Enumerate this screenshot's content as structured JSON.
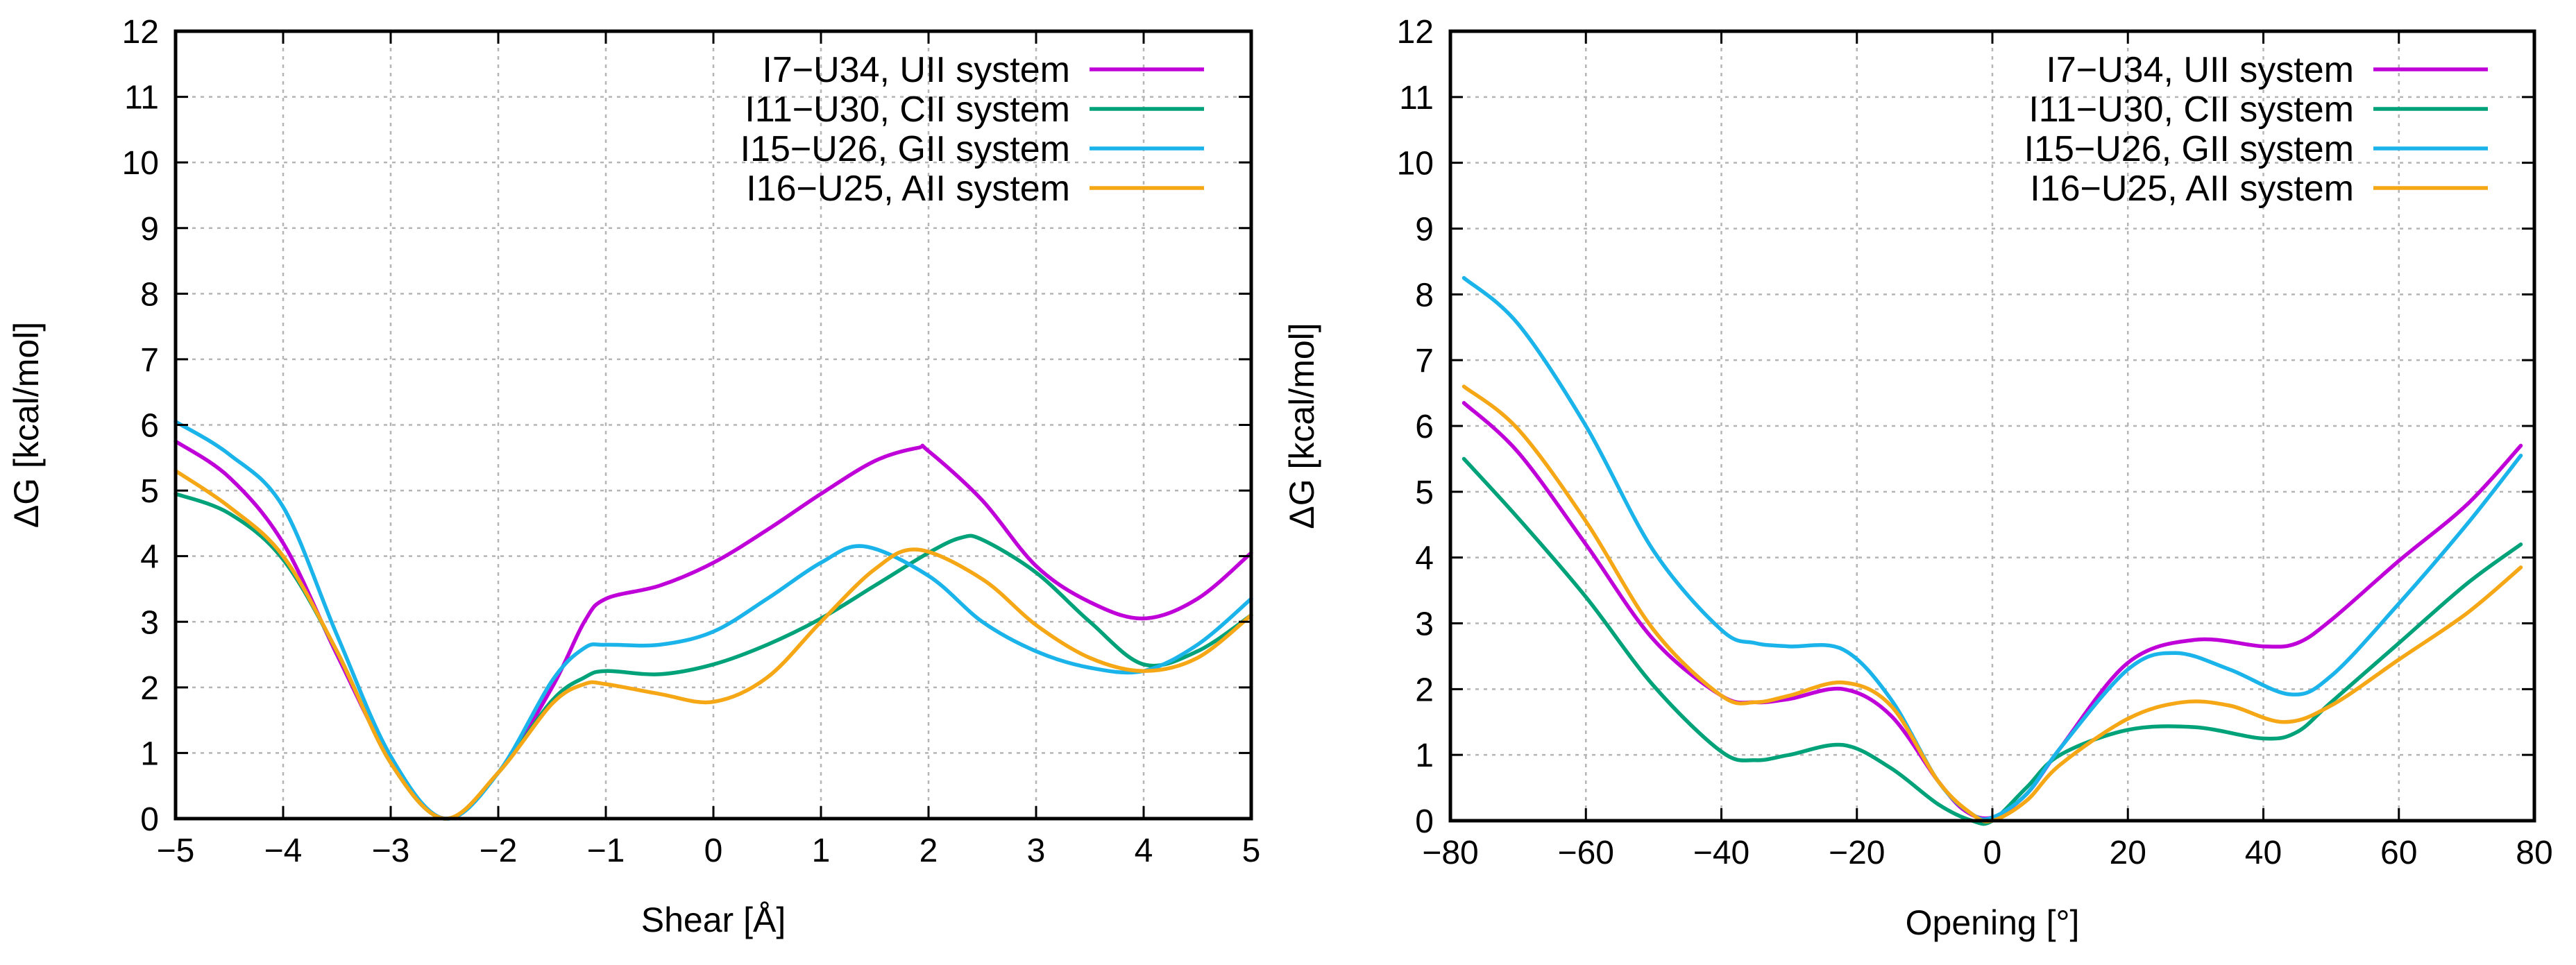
{
  "chart_data": [
    {
      "type": "line",
      "xlabel": "Shear [Å]",
      "ylabel": "ΔG [kcal/mol]",
      "xlim": [
        -5,
        5
      ],
      "ylim": [
        0,
        12
      ],
      "xticks": [
        -5,
        -4,
        -3,
        -2,
        -1,
        0,
        1,
        2,
        3,
        4,
        5
      ],
      "yticks": [
        0,
        1,
        2,
        3,
        4,
        5,
        6,
        7,
        8,
        9,
        10,
        11,
        12
      ],
      "xtick_labels": [
        "−5",
        "−4",
        "−3",
        "−2",
        "−1",
        "0",
        "1",
        "2",
        "3",
        "4",
        "5"
      ],
      "ytick_labels": [
        "0",
        "1",
        "2",
        "3",
        "4",
        "5",
        "6",
        "7",
        "8",
        "9",
        "10",
        "11",
        "12"
      ],
      "grid": true,
      "legend_position": "top-right",
      "series": [
        {
          "name": "I7−U34, UII system",
          "color": "#c000d8",
          "x": [
            -5,
            -4.5,
            -4,
            -3.5,
            -3,
            -2.5,
            -2,
            -1.5,
            -1.2,
            -1,
            -0.5,
            0,
            0.5,
            1,
            1.5,
            1.9,
            2,
            2.5,
            3,
            3.5,
            4,
            4.5,
            5
          ],
          "y": [
            5.75,
            5.2,
            4.2,
            2.5,
            0.9,
            0.0,
            0.7,
            2.0,
            3.0,
            3.35,
            3.55,
            3.9,
            4.4,
            4.95,
            5.45,
            5.65,
            5.6,
            4.85,
            3.85,
            3.3,
            3.05,
            3.35,
            4.05
          ]
        },
        {
          "name": "I11−U30, CII system",
          "color": "#00a27a",
          "x": [
            -5,
            -4.5,
            -4,
            -3.5,
            -3,
            -2.5,
            -2,
            -1.5,
            -1.2,
            -1,
            -0.5,
            0,
            0.5,
            1,
            1.5,
            2,
            2.3,
            2.5,
            3,
            3.5,
            4,
            4.5,
            5
          ],
          "y": [
            4.95,
            4.65,
            3.95,
            2.55,
            0.85,
            0.0,
            0.7,
            1.8,
            2.15,
            2.25,
            2.2,
            2.35,
            2.65,
            3.05,
            3.55,
            4.05,
            4.28,
            4.25,
            3.75,
            3.0,
            2.35,
            2.55,
            3.1
          ]
        },
        {
          "name": "I15−U26, GII system",
          "color": "#1ab4ea",
          "x": [
            -5,
            -4.5,
            -4,
            -3.5,
            -3,
            -2.5,
            -2,
            -1.5,
            -1.2,
            -1,
            -0.5,
            0,
            0.5,
            1,
            1.4,
            2,
            2.5,
            3,
            3.5,
            4,
            4.5,
            5
          ],
          "y": [
            6.05,
            5.55,
            4.75,
            2.8,
            0.95,
            0.0,
            0.7,
            2.1,
            2.6,
            2.65,
            2.65,
            2.85,
            3.35,
            3.9,
            4.15,
            3.7,
            3.0,
            2.55,
            2.3,
            2.25,
            2.65,
            3.35
          ]
        },
        {
          "name": "I16−U25, AII system",
          "color": "#f5a716",
          "x": [
            -5,
            -4.5,
            -4,
            -3.5,
            -3,
            -2.5,
            -2,
            -1.5,
            -1.2,
            -1,
            -0.5,
            0,
            0.5,
            1,
            1.5,
            1.9,
            2.5,
            3,
            3.5,
            4,
            4.5,
            5
          ],
          "y": [
            5.3,
            4.75,
            4.0,
            2.55,
            0.85,
            0.0,
            0.7,
            1.75,
            2.05,
            2.05,
            1.9,
            1.78,
            2.15,
            3.0,
            3.8,
            4.1,
            3.65,
            2.95,
            2.45,
            2.25,
            2.45,
            3.1
          ]
        }
      ]
    },
    {
      "type": "line",
      "xlabel": "Opening [°]",
      "ylabel": "ΔG [kcal/mol]",
      "xlim": [
        -80,
        80
      ],
      "ylim": [
        0,
        12
      ],
      "xticks": [
        -80,
        -60,
        -40,
        -20,
        0,
        20,
        40,
        60,
        80
      ],
      "yticks": [
        0,
        1,
        2,
        3,
        4,
        5,
        6,
        7,
        8,
        9,
        10,
        11,
        12
      ],
      "xtick_labels": [
        "−80",
        "−60",
        "−40",
        "−20",
        "0",
        "20",
        "40",
        "60",
        "80"
      ],
      "ytick_labels": [
        "0",
        "1",
        "2",
        "3",
        "4",
        "5",
        "6",
        "7",
        "8",
        "9",
        "10",
        "11",
        "12"
      ],
      "grid": true,
      "legend_position": "top-right",
      "series": [
        {
          "name": "I7−U34, UII system",
          "color": "#c000d8",
          "x": [
            -78,
            -70,
            -60,
            -50,
            -40,
            -35,
            -30,
            -22,
            -15,
            -8,
            -4,
            0,
            5,
            10,
            20,
            30,
            40,
            45,
            50,
            60,
            70,
            78
          ],
          "y": [
            6.35,
            5.6,
            4.2,
            2.75,
            1.9,
            1.8,
            1.85,
            2.0,
            1.6,
            0.6,
            0.15,
            0.05,
            0.4,
            1.1,
            2.4,
            2.75,
            2.65,
            2.7,
            3.05,
            3.95,
            4.8,
            5.7
          ]
        },
        {
          "name": "I11−U30, CII system",
          "color": "#00a27a",
          "x": [
            -78,
            -70,
            -60,
            -50,
            -40,
            -35,
            -30,
            -22,
            -15,
            -8,
            -3,
            0,
            5,
            10,
            20,
            30,
            40,
            45,
            50,
            60,
            70,
            78
          ],
          "y": [
            5.5,
            4.6,
            3.4,
            2.05,
            1.05,
            0.92,
            1.0,
            1.15,
            0.8,
            0.25,
            0.0,
            0.0,
            0.5,
            1.0,
            1.38,
            1.42,
            1.25,
            1.35,
            1.8,
            2.7,
            3.6,
            4.2
          ]
        },
        {
          "name": "I15−U26, GII system",
          "color": "#1ab4ea",
          "x": [
            -78,
            -70,
            -60,
            -50,
            -40,
            -35,
            -30,
            -22,
            -15,
            -8,
            -3,
            0,
            5,
            10,
            20,
            27,
            35,
            44,
            50,
            60,
            70,
            78
          ],
          "y": [
            8.25,
            7.55,
            6.0,
            4.1,
            2.9,
            2.7,
            2.65,
            2.6,
            1.85,
            0.6,
            0.1,
            0.05,
            0.4,
            1.1,
            2.3,
            2.55,
            2.3,
            1.92,
            2.2,
            3.3,
            4.5,
            5.55
          ]
        },
        {
          "name": "I16−U25, AII system",
          "color": "#f5a716",
          "x": [
            -78,
            -70,
            -60,
            -50,
            -40,
            -35,
            -30,
            -22,
            -15,
            -8,
            -3,
            0,
            5,
            10,
            20,
            28,
            35,
            43,
            50,
            60,
            70,
            78
          ],
          "y": [
            6.6,
            5.95,
            4.55,
            2.9,
            1.9,
            1.8,
            1.9,
            2.1,
            1.75,
            0.6,
            0.1,
            0.0,
            0.3,
            0.85,
            1.55,
            1.8,
            1.75,
            1.5,
            1.75,
            2.45,
            3.15,
            3.85
          ]
        }
      ]
    }
  ]
}
